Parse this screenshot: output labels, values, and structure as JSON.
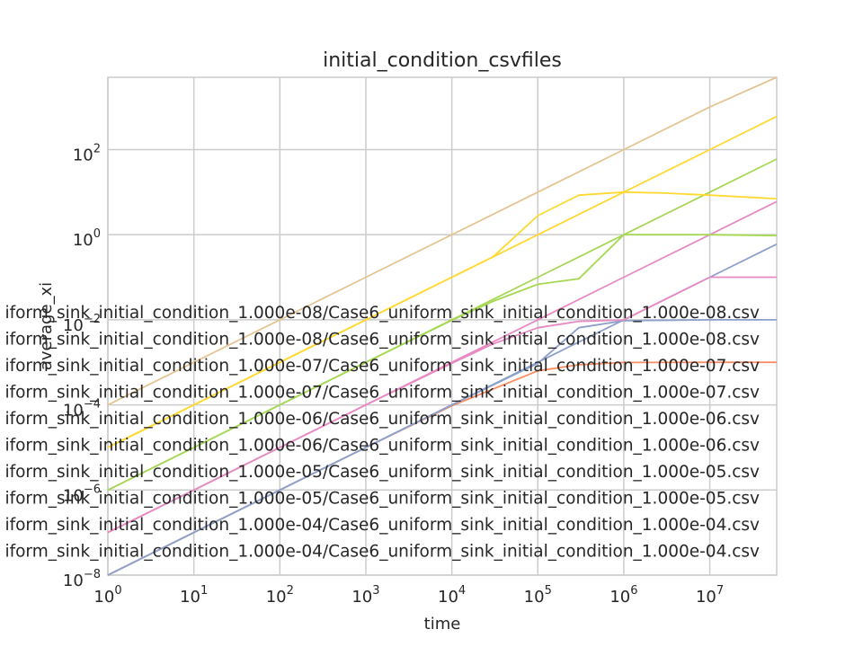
{
  "chart_data": {
    "type": "line",
    "title": "initial_condition_csvfiles",
    "xlabel": "time",
    "ylabel": "average_xi",
    "xscale": "log",
    "yscale": "log",
    "xlim": [
      1,
      60000000
    ],
    "ylim": [
      1e-08,
      5000
    ],
    "grid": true,
    "legend_position": "center-left (overlapping plot)",
    "x_ticks": [
      {
        "base": "10",
        "exp": "0"
      },
      {
        "base": "10",
        "exp": "1"
      },
      {
        "base": "10",
        "exp": "2"
      },
      {
        "base": "10",
        "exp": "3"
      },
      {
        "base": "10",
        "exp": "4"
      },
      {
        "base": "10",
        "exp": "5"
      },
      {
        "base": "10",
        "exp": "6"
      },
      {
        "base": "10",
        "exp": "7"
      }
    ],
    "y_ticks": [
      {
        "base": "10",
        "exp": "−8"
      },
      {
        "base": "10",
        "exp": "−6"
      },
      {
        "base": "10",
        "exp": "−4"
      },
      {
        "base": "10",
        "exp": "−2"
      },
      {
        "base": "10",
        "exp": "0"
      },
      {
        "base": "10",
        "exp": "2"
      }
    ],
    "legend_entries": [
      "iform_sink_initial_condition_1.000e-08/Case6_uniform_sink_initial_condition_1.000e-08.csv",
      "iform_sink_initial_condition_1.000e-08/Case6_uniform_sink_initial_condition_1.000e-08.csv",
      "iform_sink_initial_condition_1.000e-07/Case6_uniform_sink_initial_condition_1.000e-07.csv",
      "iform_sink_initial_condition_1.000e-07/Case6_uniform_sink_initial_condition_1.000e-07.csv",
      "iform_sink_initial_condition_1.000e-06/Case6_uniform_sink_initial_condition_1.000e-06.csv",
      "iform_sink_initial_condition_1.000e-06/Case6_uniform_sink_initial_condition_1.000e-06.csv",
      "iform_sink_initial_condition_1.000e-05/Case6_uniform_sink_initial_condition_1.000e-05.csv",
      "iform_sink_initial_condition_1.000e-05/Case6_uniform_sink_initial_condition_1.000e-05.csv",
      "iform_sink_initial_condition_1.000e-04/Case6_uniform_sink_initial_condition_1.000e-04.csv",
      "iform_sink_initial_condition_1.000e-04/Case6_uniform_sink_initial_condition_1.000e-04.csv"
    ],
    "series": [
      {
        "color": "#fc8d62",
        "x": [
          1,
          10,
          100,
          1000,
          10000,
          100000,
          300000,
          1000000,
          10000000,
          60000000
        ],
        "y": [
          1e-08,
          1e-07,
          1e-06,
          1e-05,
          9.5e-05,
          0.00063,
          0.00088,
          0.00099,
          0.001,
          0.001
        ]
      },
      {
        "color": "#8da0cb",
        "x": [
          1,
          10,
          100,
          1000,
          10000,
          100000,
          1000000,
          10000000,
          60000000
        ],
        "y": [
          1e-08,
          1e-07,
          1e-06,
          1e-05,
          0.0001,
          0.001,
          0.01,
          0.1,
          0.6
        ]
      },
      {
        "color": "#8da0cb",
        "x": [
          1,
          10,
          100,
          1000,
          10000,
          100000,
          300000,
          1000000,
          10000000,
          60000000
        ],
        "y": [
          1e-08,
          1e-07,
          1e-06,
          1e-05,
          0.0001,
          0.00095,
          0.0065,
          0.0095,
          0.01,
          0.01
        ]
      },
      {
        "color": "#e78ac3",
        "x": [
          1,
          10,
          100,
          1000,
          10000,
          100000,
          1000000,
          10000000,
          60000000
        ],
        "y": [
          1e-07,
          1e-06,
          1e-05,
          0.0001,
          0.001,
          0.01,
          0.1,
          1,
          6
        ]
      },
      {
        "color": "#e78ac3",
        "x": [
          1,
          10,
          100,
          1000,
          10000,
          30000,
          100000,
          300000,
          1000000,
          10000000,
          60000000
        ],
        "y": [
          1e-07,
          1e-06,
          1e-05,
          0.0001,
          0.00095,
          0.0027,
          0.0065,
          0.0092,
          0.0099,
          0.1,
          0.1
        ]
      },
      {
        "color": "#a6d854",
        "x": [
          1,
          10,
          100,
          1000,
          10000,
          100000,
          1000000,
          10000000,
          60000000
        ],
        "y": [
          1e-06,
          1e-05,
          0.0001,
          0.001,
          0.01,
          0.1,
          1,
          10,
          60
        ]
      },
      {
        "color": "#a6d854",
        "x": [
          1,
          10,
          100,
          1000,
          10000,
          30000,
          100000,
          300000,
          1000000,
          10000000,
          60000000
        ],
        "y": [
          1e-06,
          1e-05,
          0.0001,
          0.001,
          0.0097,
          0.027,
          0.068,
          0.092,
          1,
          1,
          0.95
        ]
      },
      {
        "color": "#ffd92f",
        "x": [
          1,
          10,
          100,
          1000,
          10000,
          100000,
          1000000,
          10000000,
          60000000
        ],
        "y": [
          1e-05,
          0.0001,
          0.001,
          0.01,
          0.1,
          1,
          10,
          100,
          600
        ]
      },
      {
        "color": "#ffd92f",
        "x": [
          1,
          10,
          100,
          1000,
          10000,
          30000,
          100000,
          300000,
          1000000,
          3000000,
          10000000,
          60000000
        ],
        "y": [
          1e-05,
          0.0001,
          0.001,
          0.01,
          0.1,
          0.3,
          2.8,
          8.5,
          10,
          9.5,
          8.5,
          7
        ]
      },
      {
        "color": "#e5c494",
        "x": [
          1,
          10,
          100,
          1000,
          10000,
          100000,
          1000000,
          10000000,
          60000000
        ],
        "y": [
          0.0001,
          0.001,
          0.01,
          0.1,
          1,
          10,
          100,
          1000,
          5000
        ]
      }
    ]
  }
}
